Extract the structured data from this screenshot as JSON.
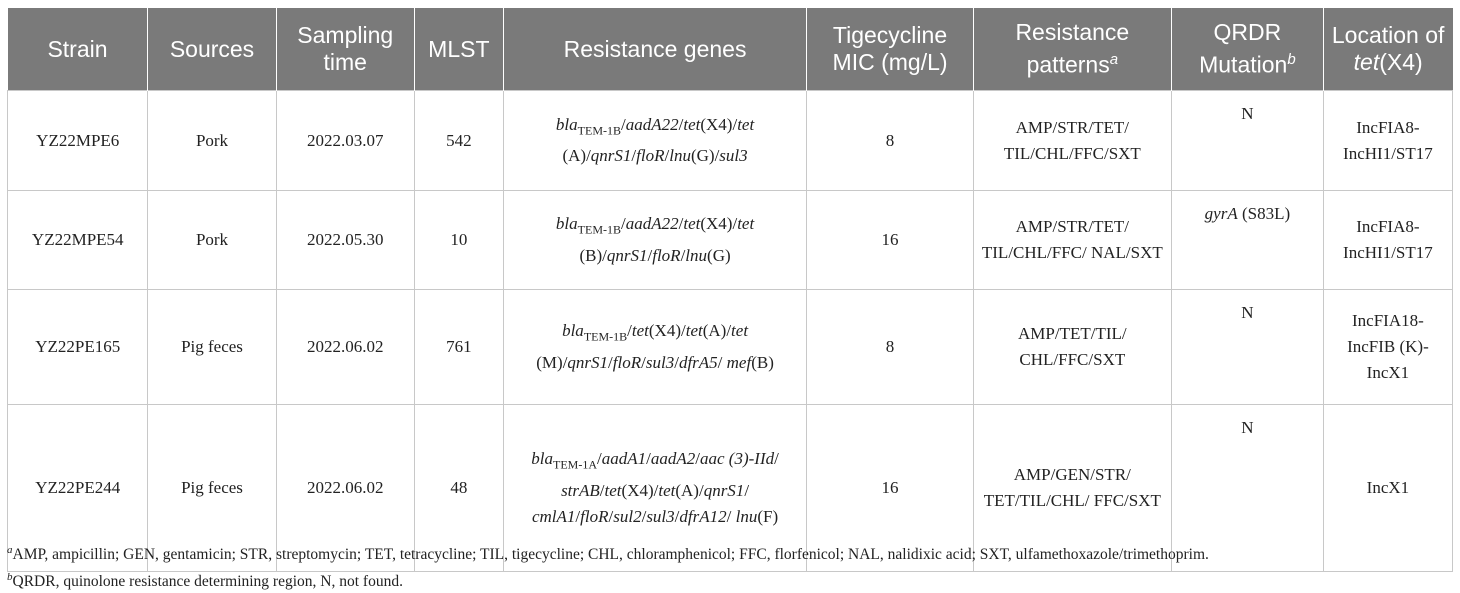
{
  "headers": [
    {
      "text": "Strain"
    },
    {
      "text": "Sources"
    },
    {
      "text": "Sampling time"
    },
    {
      "text": "MLST"
    },
    {
      "text": "Resistance genes"
    },
    {
      "text": "Tigecycline MIC (mg/L)"
    },
    {
      "text": "Resistance patterns",
      "sup": "a"
    },
    {
      "text": "QRDR Mutation",
      "sup": "b"
    },
    {
      "pre": "Location of ",
      "ital": "tet",
      "post": "(X4)"
    }
  ],
  "rows": [
    {
      "strain": "YZ22MPE6",
      "source": "Pork",
      "time": "2022.03.07",
      "mlst": "542",
      "genes": [
        {
          "t": "bla",
          "i": true
        },
        {
          "t": "TEM-1B",
          "sub": true
        },
        {
          "t": "/"
        },
        {
          "t": "aadA22",
          "i": true
        },
        {
          "t": "/"
        },
        {
          "t": "tet",
          "i": true
        },
        {
          "t": "(X4)/"
        },
        {
          "t": "tet",
          "i": true
        },
        {
          "t": " (A)/"
        },
        {
          "t": "qnrS1",
          "i": true
        },
        {
          "t": "/"
        },
        {
          "t": "floR",
          "i": true
        },
        {
          "t": "/"
        },
        {
          "t": "lnu",
          "i": true
        },
        {
          "t": "(G)/"
        },
        {
          "t": "sul3",
          "i": true
        }
      ],
      "mic": "8",
      "patterns": "AMP/STR/TET/ TIL/CHL/FFC/SXT",
      "qrdr": [
        {
          "t": "N"
        }
      ],
      "location": "IncFIA8- IncHI1/ST17"
    },
    {
      "strain": "YZ22MPE54",
      "source": "Pork",
      "time": "2022.05.30",
      "mlst": "10",
      "genes": [
        {
          "t": "bla",
          "i": true
        },
        {
          "t": "TEM-1B",
          "sub": true
        },
        {
          "t": "/"
        },
        {
          "t": "aadA22",
          "i": true
        },
        {
          "t": "/"
        },
        {
          "t": "tet",
          "i": true
        },
        {
          "t": "(X4)/"
        },
        {
          "t": "tet",
          "i": true
        },
        {
          "t": " (B)/"
        },
        {
          "t": "qnrS1",
          "i": true
        },
        {
          "t": "/"
        },
        {
          "t": "floR",
          "i": true
        },
        {
          "t": "/"
        },
        {
          "t": "lnu",
          "i": true
        },
        {
          "t": "(G)"
        }
      ],
      "mic": "16",
      "patterns": "AMP/STR/TET/ TIL/CHL/FFC/ NAL/SXT",
      "qrdr": [
        {
          "t": "gyrA",
          "i": true
        },
        {
          "t": " (S83L)"
        }
      ],
      "location": "IncFIA8- IncHI1/ST17"
    },
    {
      "strain": "YZ22PE165",
      "source": "Pig feces",
      "time": "2022.06.02",
      "mlst": "761",
      "genes": [
        {
          "t": "bla",
          "i": true
        },
        {
          "t": "TEM-1B",
          "sub": true
        },
        {
          "t": "/"
        },
        {
          "t": "tet",
          "i": true
        },
        {
          "t": "(X4)/"
        },
        {
          "t": "tet",
          "i": true
        },
        {
          "t": "(A)/"
        },
        {
          "t": "tet",
          "i": true
        },
        {
          "t": " (M)/"
        },
        {
          "t": "qnrS1",
          "i": true
        },
        {
          "t": "/"
        },
        {
          "t": "floR",
          "i": true
        },
        {
          "t": "/"
        },
        {
          "t": "sul3",
          "i": true
        },
        {
          "t": "/"
        },
        {
          "t": "dfrA5",
          "i": true
        },
        {
          "t": "/ "
        },
        {
          "t": "mef",
          "i": true
        },
        {
          "t": "(B)"
        }
      ],
      "mic": "8",
      "patterns": "AMP/TET/TIL/ CHL/FFC/SXT",
      "qrdr": [
        {
          "t": "N"
        }
      ],
      "location": "IncFIA18- IncFIB (K)-IncX1"
    },
    {
      "strain": "YZ22PE244",
      "source": "Pig feces",
      "time": "2022.06.02",
      "mlst": "48",
      "genes": [
        {
          "t": "bla",
          "i": true
        },
        {
          "t": "TEM-1A",
          "sub": true
        },
        {
          "t": "/"
        },
        {
          "t": "aadA1",
          "i": true
        },
        {
          "t": "/"
        },
        {
          "t": "aadA2",
          "i": true
        },
        {
          "t": "/"
        },
        {
          "t": "aac (3)-IId",
          "i": true
        },
        {
          "t": "/ "
        },
        {
          "t": "strAB",
          "i": true
        },
        {
          "t": "/"
        },
        {
          "t": "tet",
          "i": true
        },
        {
          "t": "(X4)/"
        },
        {
          "t": "tet",
          "i": true
        },
        {
          "t": "(A)/"
        },
        {
          "t": "qnrS1",
          "i": true
        },
        {
          "t": "/ "
        },
        {
          "t": "cmlA1",
          "i": true
        },
        {
          "t": "/"
        },
        {
          "t": "floR",
          "i": true
        },
        {
          "t": "/"
        },
        {
          "t": "sul2",
          "i": true
        },
        {
          "t": "/"
        },
        {
          "t": "sul3",
          "i": true
        },
        {
          "t": "/"
        },
        {
          "t": "dfrA12",
          "i": true
        },
        {
          "t": "/ "
        },
        {
          "t": "lnu",
          "i": true
        },
        {
          "t": "(F)"
        }
      ],
      "mic": "16",
      "patterns": "AMP/GEN/STR/ TET/TIL/CHL/ FFC/SXT",
      "qrdr": [
        {
          "t": "N"
        }
      ],
      "location": "IncX1"
    }
  ],
  "footnotes": [
    {
      "mark": "a",
      "text": "AMP, ampicillin; GEN, gentamicin; STR, streptomycin; TET, tetracycline; TIL, tigecycline; CHL, chloramphenicol; FFC, florfenicol; NAL, nalidixic acid; SXT, ulfamethoxazole/trimethoprim."
    },
    {
      "mark": "b",
      "text": "QRDR, quinolone resistance determining region, N, not found."
    }
  ]
}
